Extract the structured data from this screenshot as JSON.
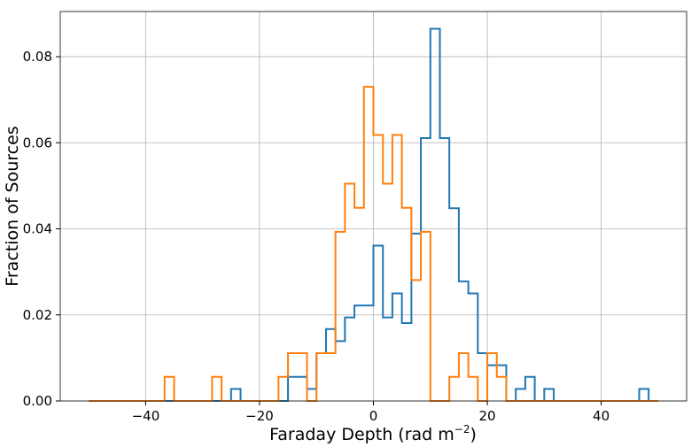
{
  "chart_data": {
    "type": "step histogram",
    "xlabel": "Faraday Depth (rad m",
    "xlabel_sup": "−2",
    "xlabel_end": ")",
    "ylabel": "Fraction of Sources",
    "xlim": [
      -55,
      55
    ],
    "ylim": [
      0,
      0.0905
    ],
    "grid": true,
    "x_ticks": [
      -40,
      -20,
      0,
      20,
      40
    ],
    "x_tick_labels": [
      "−40",
      "−20",
      "0",
      "20",
      "40"
    ],
    "y_ticks": [
      0.0,
      0.02,
      0.04,
      0.06,
      0.08
    ],
    "y_tick_labels": [
      "0.00",
      "0.02",
      "0.04",
      "0.06",
      "0.08"
    ],
    "bin_edges": [
      -50.0,
      -48.33,
      -46.67,
      -45.0,
      -43.33,
      -41.67,
      -40.0,
      -38.33,
      -36.67,
      -35.0,
      -33.33,
      -31.67,
      -30.0,
      -28.33,
      -26.67,
      -25.0,
      -23.33,
      -21.67,
      -20.0,
      -18.33,
      -16.67,
      -15.0,
      -13.33,
      -11.67,
      -10.0,
      -8.33,
      -6.67,
      -5.0,
      -3.33,
      -1.67,
      0.0,
      1.67,
      3.33,
      5.0,
      6.67,
      8.33,
      10.0,
      11.67,
      13.33,
      15.0,
      16.67,
      18.33,
      20.0,
      21.67,
      23.33,
      25.0,
      26.67,
      28.33,
      30.0,
      31.67,
      33.33,
      35.0,
      36.67,
      38.33,
      40.0,
      41.67,
      43.33,
      45.0,
      46.67,
      48.33,
      50.0
    ],
    "series": [
      {
        "color": "#1f77b4",
        "values": [
          0,
          0,
          0,
          0,
          0,
          0,
          0,
          0,
          0,
          0,
          0,
          0,
          0,
          0,
          0,
          0.0028,
          0,
          0,
          0,
          0,
          0,
          0.0056,
          0.0056,
          0.0028,
          0.0111,
          0.0167,
          0.0139,
          0.0194,
          0.0222,
          0.0222,
          0.0361,
          0.0194,
          0.025,
          0.0181,
          0.0389,
          0.0611,
          0.0865,
          0.0611,
          0.0448,
          0.0278,
          0.025,
          0.0111,
          0.0083,
          0.0083,
          0,
          0.0028,
          0.0056,
          0,
          0.0028,
          0,
          0,
          0,
          0,
          0,
          0,
          0,
          0,
          0,
          0.0028,
          0
        ]
      },
      {
        "color": "#ff7f0e",
        "values": [
          0,
          0,
          0,
          0,
          0,
          0,
          0,
          0,
          0.0056,
          0,
          0,
          0,
          0,
          0.0056,
          0,
          0,
          0,
          0,
          0,
          0,
          0.0056,
          0.0111,
          0.0111,
          0,
          0.0111,
          0.0111,
          0.0393,
          0.0505,
          0.0449,
          0.073,
          0.0618,
          0.0505,
          0.0618,
          0.0449,
          0.0281,
          0.0393,
          0,
          0,
          0.0056,
          0.0111,
          0.0056,
          0,
          0.0111,
          0.0056,
          0,
          0,
          0,
          0,
          0,
          0,
          0,
          0,
          0,
          0,
          0,
          0,
          0,
          0,
          0,
          0
        ]
      }
    ]
  }
}
